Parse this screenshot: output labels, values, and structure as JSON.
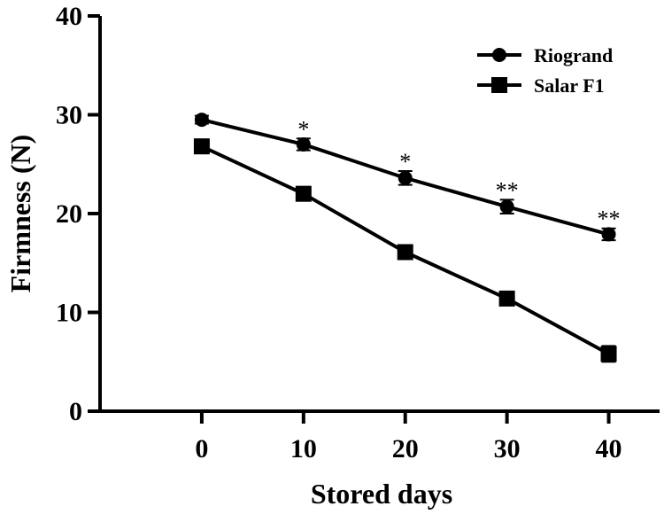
{
  "chart_data": {
    "type": "line",
    "title": "",
    "xlabel": "Stored days",
    "ylabel": "Firmness (N)",
    "x": [
      0,
      10,
      20,
      30,
      40
    ],
    "xlim": [
      -10,
      45
    ],
    "ylim": [
      0,
      40
    ],
    "xticks": [
      0,
      10,
      20,
      30,
      40
    ],
    "yticks": [
      0,
      10,
      20,
      30,
      40
    ],
    "grid": false,
    "legend_position": "top-right",
    "series": [
      {
        "name": "Riogrand",
        "marker": "circle",
        "color": "#000000",
        "values": [
          29.5,
          27.0,
          23.6,
          20.7,
          17.9
        ],
        "errors": [
          0.4,
          0.6,
          0.7,
          0.7,
          0.6
        ]
      },
      {
        "name": "Salar F1",
        "marker": "square",
        "color": "#000000",
        "values": [
          26.8,
          22.0,
          16.1,
          11.4,
          5.8
        ],
        "errors": [
          0.7,
          0.7,
          0.7,
          0.6,
          0.8
        ]
      }
    ],
    "annotations": [
      {
        "x": 10,
        "text": "*"
      },
      {
        "x": 20,
        "text": "*"
      },
      {
        "x": 30,
        "text": "**"
      },
      {
        "x": 40,
        "text": "**"
      }
    ]
  }
}
